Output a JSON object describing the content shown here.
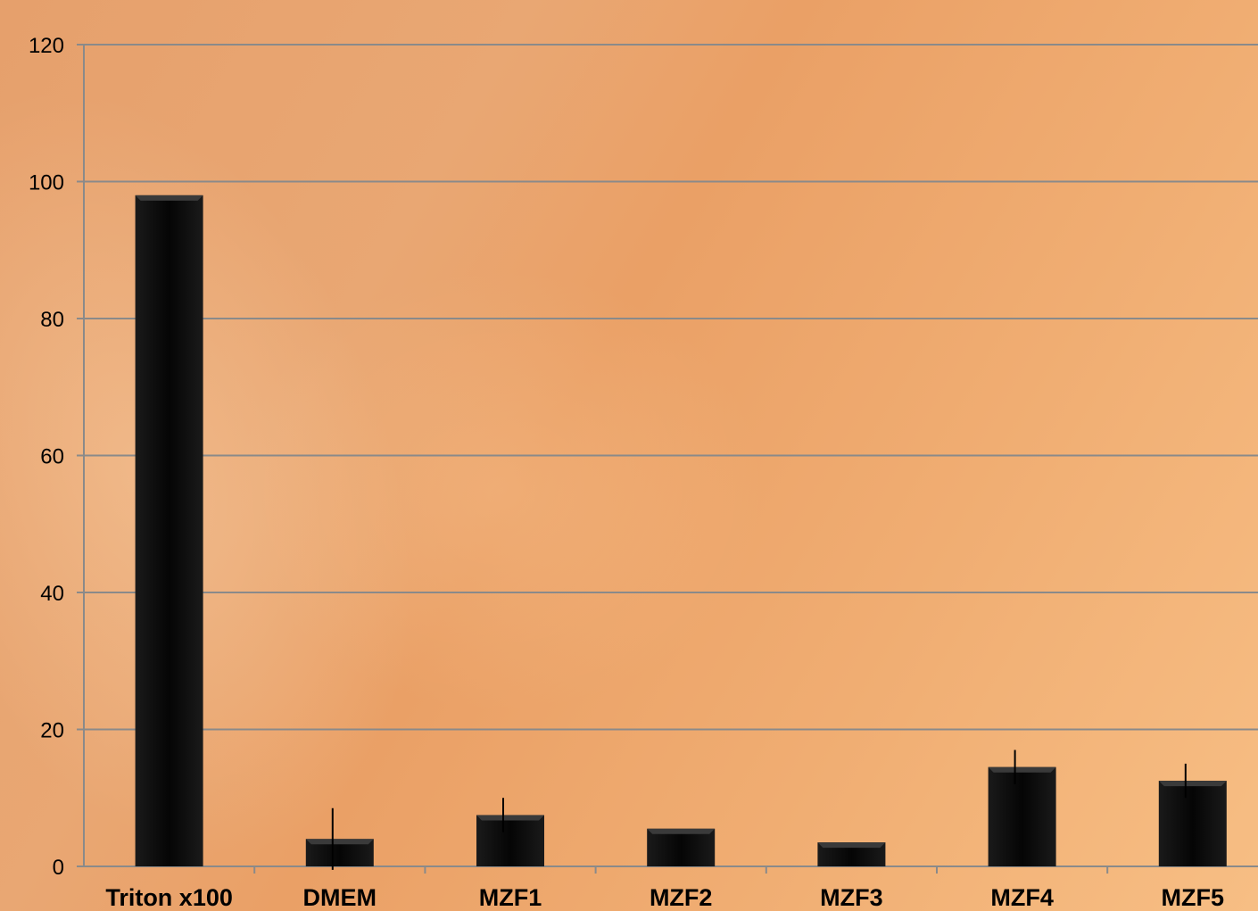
{
  "chart_data": {
    "type": "bar",
    "categories": [
      "Triton x100",
      "DMEM",
      "MZF1",
      "MZF2",
      "MZF3",
      "MZF4",
      "MZF5"
    ],
    "values": [
      98,
      4,
      7.5,
      5.5,
      3.5,
      14.5,
      12.5
    ],
    "errors": [
      0,
      4.5,
      2.5,
      0,
      0,
      2.5,
      2.5
    ],
    "yticks": [
      0,
      20,
      40,
      60,
      80,
      100,
      120
    ],
    "ylim": [
      0,
      120
    ],
    "grid": true,
    "colors": {
      "bar": "#0a0a0a",
      "grid": "#8a8a8a",
      "axis": "#8a8a8a"
    }
  }
}
